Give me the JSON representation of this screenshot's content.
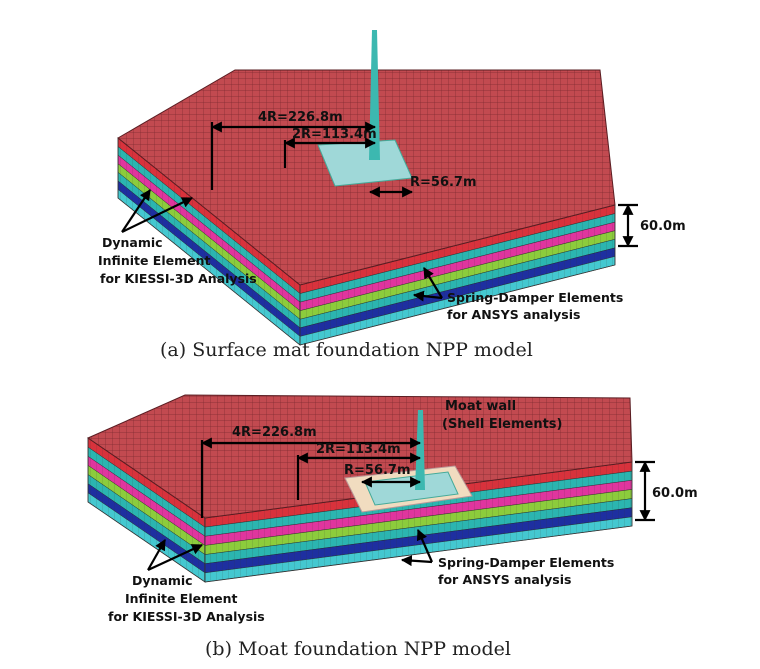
{
  "panels": [
    {
      "caption": "(a)  Surface mat foundation NPP model",
      "dim_4r": "4R=226.8m",
      "dim_2r": "2R=113.4m",
      "dim_r": "R=56.7m",
      "depth": "60.0m",
      "infinite_label": [
        "Dynamic",
        "Infinite Element",
        "for KIESSI-3D Analysis"
      ],
      "spring_label": [
        "Spring-Damper Elements",
        "for ANSYS analysis"
      ]
    },
    {
      "caption": "(b)  Moat foundation NPP model",
      "dim_4r": "4R=226.8m",
      "dim_2r": "2R=113.4m",
      "dim_r": "R=56.7m",
      "depth": "60.0m",
      "moat_label": [
        "Moat wall",
        "(Shell Elements)"
      ],
      "infinite_label": [
        "Dynamic",
        "Infinite Element",
        "for KIESSI-3D Analysis"
      ],
      "spring_label": [
        "Spring-Damper Elements",
        "for ANSYS analysis"
      ]
    }
  ]
}
